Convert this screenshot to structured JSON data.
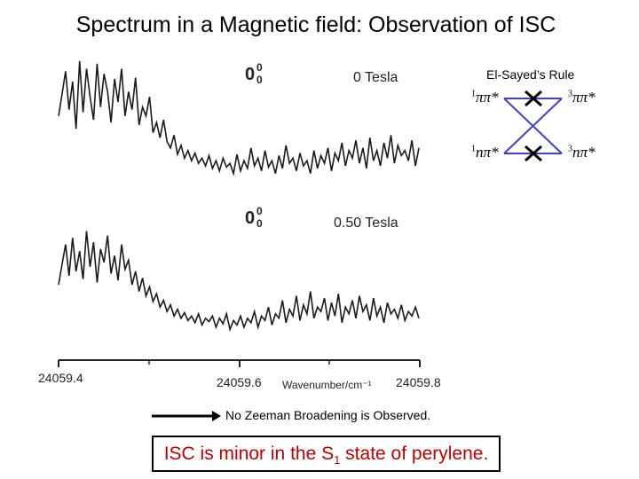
{
  "title": "Spectrum in a Magnetic field: Observation of ISC",
  "chart_data": {
    "type": "line",
    "xlabel": "Wavenumber/cm⁻¹",
    "xlim": [
      24059.4,
      24059.8
    ],
    "x_ticks": [
      "24059.4",
      "24059.6",
      "24059.8"
    ],
    "series": [
      {
        "name": "0 Tesla",
        "label": "0 Tesla",
        "band_label": "0",
        "band_sup": "0",
        "band_sub": "0",
        "values": [
          0.55,
          0.72,
          0.9,
          0.6,
          0.82,
          0.45,
          0.98,
          0.58,
          0.92,
          0.7,
          0.52,
          0.96,
          0.62,
          0.88,
          0.74,
          0.5,
          0.84,
          0.66,
          0.92,
          0.55,
          0.74,
          0.6,
          0.85,
          0.48,
          0.62,
          0.55,
          0.7,
          0.42,
          0.5,
          0.38,
          0.52,
          0.35,
          0.3,
          0.4,
          0.25,
          0.32,
          0.22,
          0.28,
          0.2,
          0.26,
          0.18,
          0.22,
          0.16,
          0.24,
          0.14,
          0.2,
          0.12,
          0.22,
          0.15,
          0.18,
          0.1,
          0.25,
          0.12,
          0.2,
          0.14,
          0.3,
          0.16,
          0.22,
          0.12,
          0.28,
          0.15,
          0.2,
          0.1,
          0.24,
          0.14,
          0.32,
          0.18,
          0.22,
          0.12,
          0.26,
          0.16,
          0.2,
          0.1,
          0.28,
          0.14,
          0.24,
          0.18,
          0.3,
          0.12,
          0.26,
          0.2,
          0.34,
          0.16,
          0.28,
          0.22,
          0.36,
          0.18,
          0.3,
          0.14,
          0.38,
          0.2,
          0.28,
          0.16,
          0.34,
          0.22,
          0.4,
          0.18,
          0.32,
          0.24,
          0.28,
          0.2,
          0.36,
          0.16,
          0.3
        ]
      },
      {
        "name": "0.50 Tesla",
        "label": "0.50 Tesla",
        "band_label": "0",
        "band_sup": "0",
        "band_sub": "0",
        "values": [
          0.5,
          0.68,
          0.86,
          0.58,
          0.92,
          0.62,
          0.8,
          0.55,
          0.98,
          0.66,
          0.88,
          0.52,
          0.82,
          0.7,
          0.94,
          0.6,
          0.76,
          0.54,
          0.86,
          0.64,
          0.72,
          0.5,
          0.62,
          0.44,
          0.56,
          0.4,
          0.48,
          0.35,
          0.42,
          0.3,
          0.36,
          0.26,
          0.32,
          0.22,
          0.28,
          0.2,
          0.25,
          0.18,
          0.22,
          0.16,
          0.24,
          0.14,
          0.2,
          0.17,
          0.22,
          0.12,
          0.2,
          0.15,
          0.24,
          0.1,
          0.18,
          0.14,
          0.22,
          0.12,
          0.2,
          0.16,
          0.26,
          0.12,
          0.22,
          0.18,
          0.3,
          0.14,
          0.24,
          0.2,
          0.36,
          0.16,
          0.28,
          0.22,
          0.4,
          0.18,
          0.32,
          0.24,
          0.44,
          0.2,
          0.3,
          0.26,
          0.38,
          0.18,
          0.34,
          0.22,
          0.42,
          0.16,
          0.3,
          0.24,
          0.36,
          0.2,
          0.4,
          0.26,
          0.32,
          0.18,
          0.38,
          0.22,
          0.3,
          0.16,
          0.34,
          0.24,
          0.28,
          0.2,
          0.32,
          0.18,
          0.26,
          0.22,
          0.3,
          0.2
        ]
      }
    ]
  },
  "el_sayed": {
    "title": "El-Sayed’s Rule",
    "terms": [
      {
        "sup": "1",
        "text": "ππ*"
      },
      {
        "sup": "3",
        "text": "ππ*"
      },
      {
        "sup": "1",
        "text": "nπ*"
      },
      {
        "sup": "3",
        "text": "nπ*"
      }
    ],
    "arrow_color": "#4040c8"
  },
  "note": "No Zeeman Broadening is Observed.",
  "conclusion": {
    "before": "ISC is minor in the S",
    "sub": "1",
    "after": " state of perylene.",
    "color": "#c00000"
  }
}
